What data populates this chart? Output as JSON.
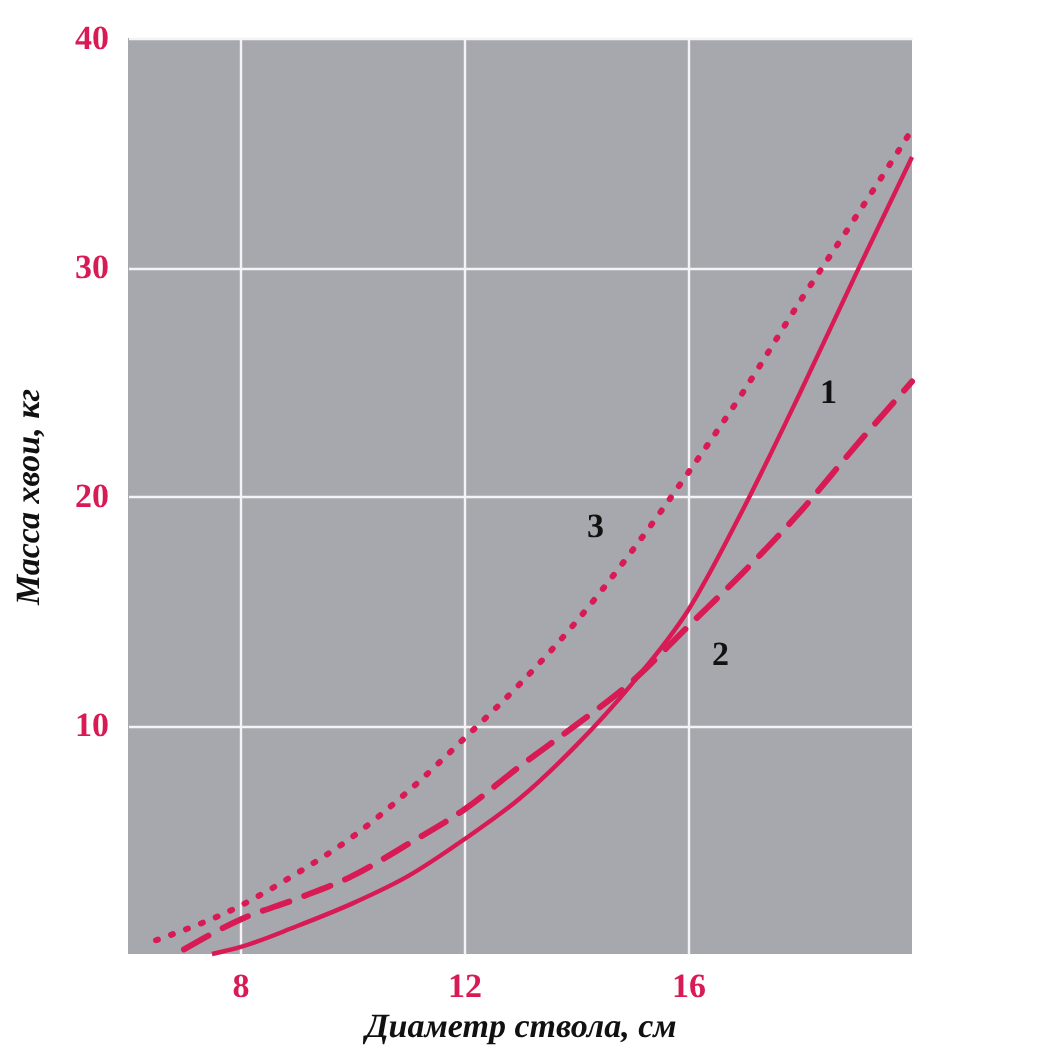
{
  "chart_data": {
    "type": "line",
    "xlabel": "Диаметр ствола, см",
    "ylabel": "Масса хвои, кг",
    "xlim": [
      6,
      20
    ],
    "ylim": [
      0,
      40
    ],
    "xticks": [
      8,
      12,
      16
    ],
    "yticks": [
      10,
      20,
      30,
      40
    ],
    "grid": true,
    "series": [
      {
        "name": "1",
        "color": "#d81b55",
        "line_style": "solid",
        "x": [
          7.5,
          8,
          9,
          10,
          11,
          12,
          13,
          14,
          15,
          16,
          17,
          18,
          19,
          20
        ],
        "values": [
          0,
          0.3,
          1.2,
          2.2,
          3.4,
          5,
          6.8,
          9.1,
          11.8,
          15,
          19.5,
          24.5,
          29.7,
          34.8
        ]
      },
      {
        "name": "2",
        "color": "#d81b55",
        "line_style": "dashed",
        "x": [
          7,
          8,
          9,
          10,
          11,
          12,
          13,
          14,
          15,
          16,
          17,
          18,
          19,
          20
        ],
        "values": [
          0.2,
          1.5,
          2.4,
          3.4,
          4.8,
          6.3,
          8.2,
          10,
          11.9,
          14.3,
          16.7,
          19.3,
          22.2,
          25
        ]
      },
      {
        "name": "3",
        "color": "#d81b55",
        "line_style": "dotted",
        "x": [
          6.5,
          8,
          9,
          10,
          11,
          12,
          13,
          14,
          15,
          16,
          17,
          18,
          19,
          20
        ],
        "values": [
          0.6,
          2.1,
          3.5,
          5.1,
          7.1,
          9.4,
          11.8,
          14.5,
          17.6,
          21,
          24.6,
          28.5,
          32.2,
          36
        ]
      }
    ]
  }
}
